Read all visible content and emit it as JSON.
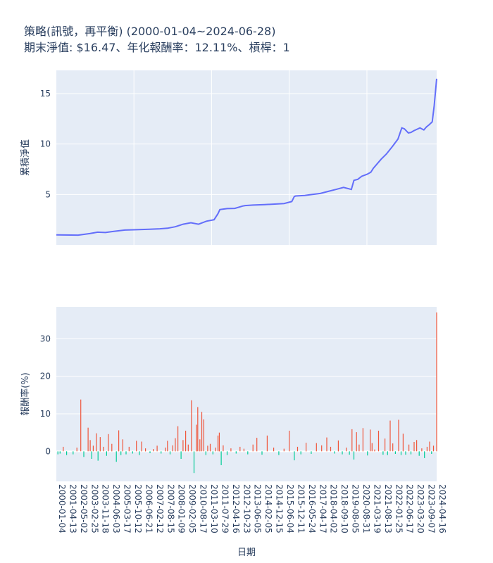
{
  "chart_data": [
    {
      "type": "line",
      "title": "策略(訊號，再平衡) (2000-01-04~2024-06-28)",
      "subtitle": "期末淨值: $16.47、年化報酬率：12.11%、槓桿：1",
      "ylabel": "累積淨值",
      "xlabel": "",
      "ylim": [
        0,
        17.3
      ],
      "yticks": [
        5,
        10,
        15
      ],
      "x_range": [
        "2000-01-04",
        "2024-06-28"
      ],
      "grid": true,
      "line_color": "#636efa",
      "series": [
        {
          "x": [
            "2000-01-04",
            "2001-06-01",
            "2002-03-01",
            "2002-09-01",
            "2003-03-01",
            "2003-09-01",
            "2004-06-01",
            "2005-03-01",
            "2006-01-01",
            "2006-09-01",
            "2007-03-01",
            "2007-09-01",
            "2008-03-01",
            "2008-09-01",
            "2009-03-01",
            "2009-09-01",
            "2010-03-01",
            "2010-06-01",
            "2010-07-15",
            "2011-01-01",
            "2011-07-01",
            "2012-01-01",
            "2012-03-01",
            "2012-09-01",
            "2013-06-01",
            "2014-03-01",
            "2014-09-01",
            "2015-03-01",
            "2015-05-01",
            "2015-06-01",
            "2016-01-01",
            "2016-07-01",
            "2017-01-01",
            "2017-07-01",
            "2018-01-01",
            "2018-07-01",
            "2019-01-01",
            "2019-03-01",
            "2019-06-01",
            "2019-09-01",
            "2020-01-01",
            "2020-04-01",
            "2020-06-01",
            "2020-12-01",
            "2021-04-01",
            "2021-09-01",
            "2022-01-01",
            "2022-04-01",
            "2022-06-01",
            "2022-09-01",
            "2022-11-01",
            "2023-01-01",
            "2023-06-01",
            "2023-09-01",
            "2023-11-01",
            "2024-01-01",
            "2024-03-15",
            "2024-05-01",
            "2024-06-28"
          ],
          "y": [
            1.0,
            0.97,
            1.12,
            1.26,
            1.23,
            1.33,
            1.47,
            1.51,
            1.55,
            1.6,
            1.65,
            1.8,
            2.05,
            2.2,
            2.05,
            2.35,
            2.5,
            3.1,
            3.5,
            3.6,
            3.62,
            3.85,
            3.9,
            3.95,
            4.0,
            4.05,
            4.1,
            4.3,
            4.8,
            4.85,
            4.9,
            5.0,
            5.1,
            5.3,
            5.5,
            5.7,
            5.5,
            6.4,
            6.5,
            6.8,
            7.0,
            7.2,
            7.6,
            8.5,
            9.0,
            9.8,
            10.5,
            11.6,
            11.5,
            11.1,
            11.15,
            11.3,
            11.6,
            11.4,
            11.7,
            11.9,
            12.2,
            13.8,
            16.47
          ]
        }
      ]
    },
    {
      "type": "bar",
      "ylabel": "報酬率(%)",
      "xlabel": "日期",
      "ylim": [
        -8,
        38.5
      ],
      "yticks": [
        0,
        10,
        20,
        30
      ],
      "grid": true,
      "pos_color": "#ef553b",
      "neg_color": "#00cc96",
      "x_tick_labels": [
        "2000-01-04",
        "2001-04-13",
        "2002-05-02",
        "2003-02-25",
        "2003-11-18",
        "2004-06-03",
        "2005-03-17",
        "2005-10-12",
        "2006-06-21",
        "2007-02-12",
        "2007-08-15",
        "2008-01-09",
        "2009-02-05",
        "2010-08-17",
        "2011-03-10",
        "2011-07-29",
        "2012-04-16",
        "2012-10-23",
        "2013-06-05",
        "2014-02-05",
        "2014-12-15",
        "2015-06-04",
        "2015-12-11",
        "2016-05-24",
        "2017-04-17",
        "2018-04-02",
        "2018-09-10",
        "2019-08-05",
        "2020-08-31",
        "2021-03-19",
        "2021-08-13",
        "2022-01-25",
        "2022-06-17",
        "2023-03-20",
        "2023-09-07",
        "2024-04-16"
      ],
      "x": [
        "2000-02-10",
        "2000-04-01",
        "2000-06-15",
        "2000-09-01",
        "2001-02-01",
        "2001-05-01",
        "2001-08-01",
        "2001-10-10",
        "2002-01-20",
        "2002-03-10",
        "2002-04-15",
        "2002-05-20",
        "2002-08-01",
        "2002-09-10",
        "2002-11-01",
        "2003-01-15",
        "2003-04-01",
        "2003-05-10",
        "2003-08-01",
        "2003-11-15",
        "2004-01-10",
        "2004-03-01",
        "2004-04-15",
        "2004-07-01",
        "2004-09-10",
        "2004-12-01",
        "2005-03-01",
        "2005-05-10",
        "2005-07-01",
        "2005-10-01",
        "2006-01-15",
        "2006-04-01",
        "2006-07-01",
        "2006-10-01",
        "2007-01-10",
        "2007-03-01",
        "2007-05-01",
        "2007-07-01",
        "2007-09-01",
        "2007-11-01",
        "2008-01-15",
        "2008-03-01",
        "2008-05-01",
        "2008-07-01",
        "2008-09-15",
        "2008-11-15",
        "2009-01-10",
        "2009-02-10",
        "2009-04-01",
        "2009-05-15",
        "2009-07-01",
        "2009-08-20",
        "2009-10-01",
        "2009-12-01",
        "2010-02-01",
        "2010-04-01",
        "2010-06-01",
        "2010-07-01",
        "2010-08-15",
        "2010-10-01",
        "2011-01-01",
        "2011-04-01",
        "2011-08-01",
        "2011-11-01",
        "2012-02-01",
        "2012-05-01",
        "2012-09-01",
        "2012-12-01",
        "2013-04-01",
        "2013-08-01",
        "2014-01-01",
        "2014-05-01",
        "2014-09-01",
        "2015-01-01",
        "2015-05-01",
        "2015-07-15",
        "2015-10-01",
        "2016-02-01",
        "2016-06-01",
        "2016-10-01",
        "2017-02-01",
        "2017-06-01",
        "2017-09-01",
        "2017-12-01",
        "2018-03-01",
        "2018-06-01",
        "2018-09-01",
        "2018-11-15",
        "2019-01-15",
        "2019-03-01",
        "2019-05-01",
        "2019-07-01",
        "2019-10-01",
        "2020-01-15",
        "2020-03-20",
        "2020-05-01",
        "2020-07-01",
        "2020-10-01",
        "2021-01-15",
        "2021-03-01",
        "2021-05-01",
        "2021-07-01",
        "2021-09-01",
        "2021-11-01",
        "2022-01-15",
        "2022-03-15",
        "2022-05-01",
        "2022-07-01",
        "2022-09-15",
        "2022-11-01",
        "2023-01-15",
        "2023-03-15",
        "2023-05-15",
        "2023-07-15",
        "2023-09-15",
        "2023-11-15",
        "2024-01-15",
        "2024-03-01",
        "2024-04-15",
        "2024-06-28"
      ],
      "values": [
        -0.8,
        -0.6,
        1.2,
        -1.0,
        -0.8,
        1.0,
        13.8,
        -1.5,
        6.3,
        3.0,
        -2.0,
        1.5,
        4.8,
        -2.5,
        3.8,
        1.2,
        -1.2,
        4.6,
        2.0,
        -2.8,
        5.6,
        -1.0,
        3.2,
        -0.8,
        1.2,
        -0.6,
        2.8,
        -1.0,
        2.6,
        0.8,
        -0.5,
        0.6,
        1.5,
        -0.6,
        1.0,
        2.8,
        -0.8,
        1.6,
        3.5,
        6.7,
        -2.0,
        3.0,
        5.5,
        1.8,
        13.6,
        -5.8,
        7.1,
        11.8,
        3.2,
        10.5,
        8.5,
        -1.0,
        1.5,
        2.0,
        -0.8,
        1.0,
        4.2,
        5.0,
        -3.7,
        1.6,
        -1.0,
        0.8,
        -0.6,
        1.2,
        0.7,
        -0.8,
        1.8,
        3.6,
        -0.9,
        4.2,
        1.0,
        -1.0,
        0.7,
        5.5,
        -2.4,
        1.2,
        -0.8,
        2.3,
        -0.7,
        2.2,
        1.6,
        3.7,
        1.2,
        -0.6,
        2.9,
        -0.8,
        1.0,
        -0.9,
        5.9,
        -2.2,
        5.1,
        1.8,
        6.2,
        -1.1,
        5.8,
        2.2,
        0.5,
        5.5,
        -0.9,
        3.4,
        -1.0,
        8.2,
        2.1,
        -0.7,
        8.4,
        -1.0,
        4.7,
        -0.9,
        1.8,
        -0.8,
        2.5,
        3.0,
        -1.2,
        0.8,
        -1.8,
        1.2,
        2.6,
        -0.7,
        1.5,
        37.0
      ]
    }
  ]
}
